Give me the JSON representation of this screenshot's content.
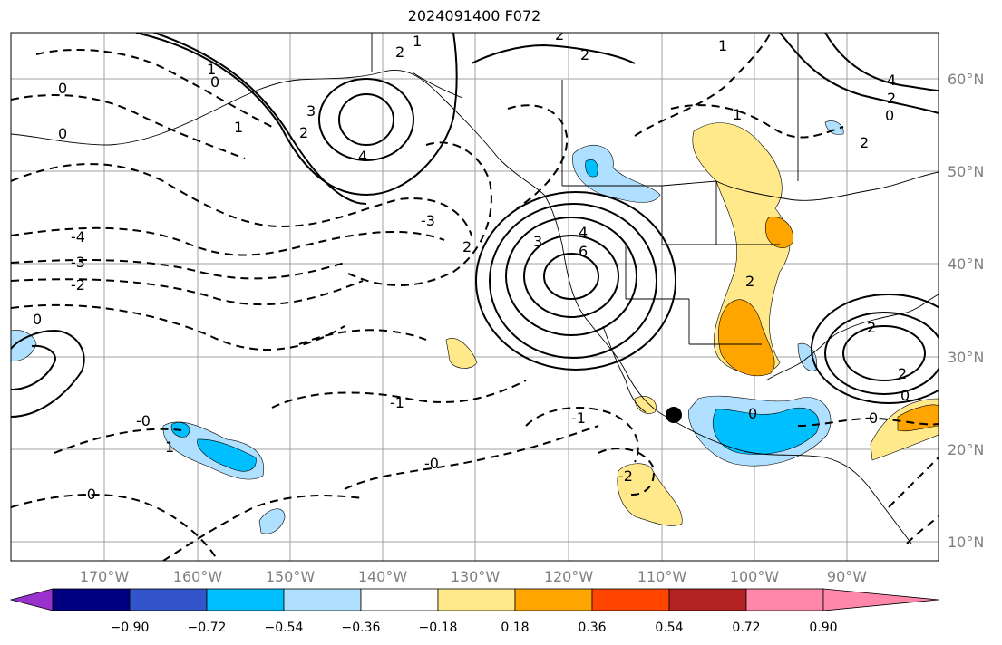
{
  "title": "2024091400 F072",
  "longitude_labels": [
    "170°W",
    "160°W",
    "150°W",
    "140°W",
    "130°W",
    "120°W",
    "110°W",
    "100°W",
    "90°W"
  ],
  "latitude_labels": [
    "60°N",
    "50°N",
    "40°N",
    "30°N",
    "20°N",
    "10°N"
  ],
  "colorbar": {
    "colors": [
      "#9932cc",
      "#000080",
      "#3355cc",
      "#00bfff",
      "#b0e0ff",
      "#ffffff",
      "#ffe98a",
      "#ffa500",
      "#ff4500",
      "#b22222",
      "#ff88aa"
    ],
    "tick_labels": [
      "−0.90",
      "−0.72",
      "−0.54",
      "−0.36",
      "−0.18",
      "0.18",
      "0.36",
      "0.54",
      "0.72",
      "0.90"
    ]
  },
  "contour_labels": [
    {
      "text": "4"
    },
    {
      "text": "3"
    },
    {
      "text": "2"
    },
    {
      "text": "-1"
    },
    {
      "text": "-2"
    },
    {
      "text": "-0"
    },
    {
      "text": "-3"
    },
    {
      "text": "-4"
    },
    {
      "text": "6"
    },
    {
      "text": "0"
    },
    {
      "text": "1"
    }
  ],
  "marker": "location-dot"
}
